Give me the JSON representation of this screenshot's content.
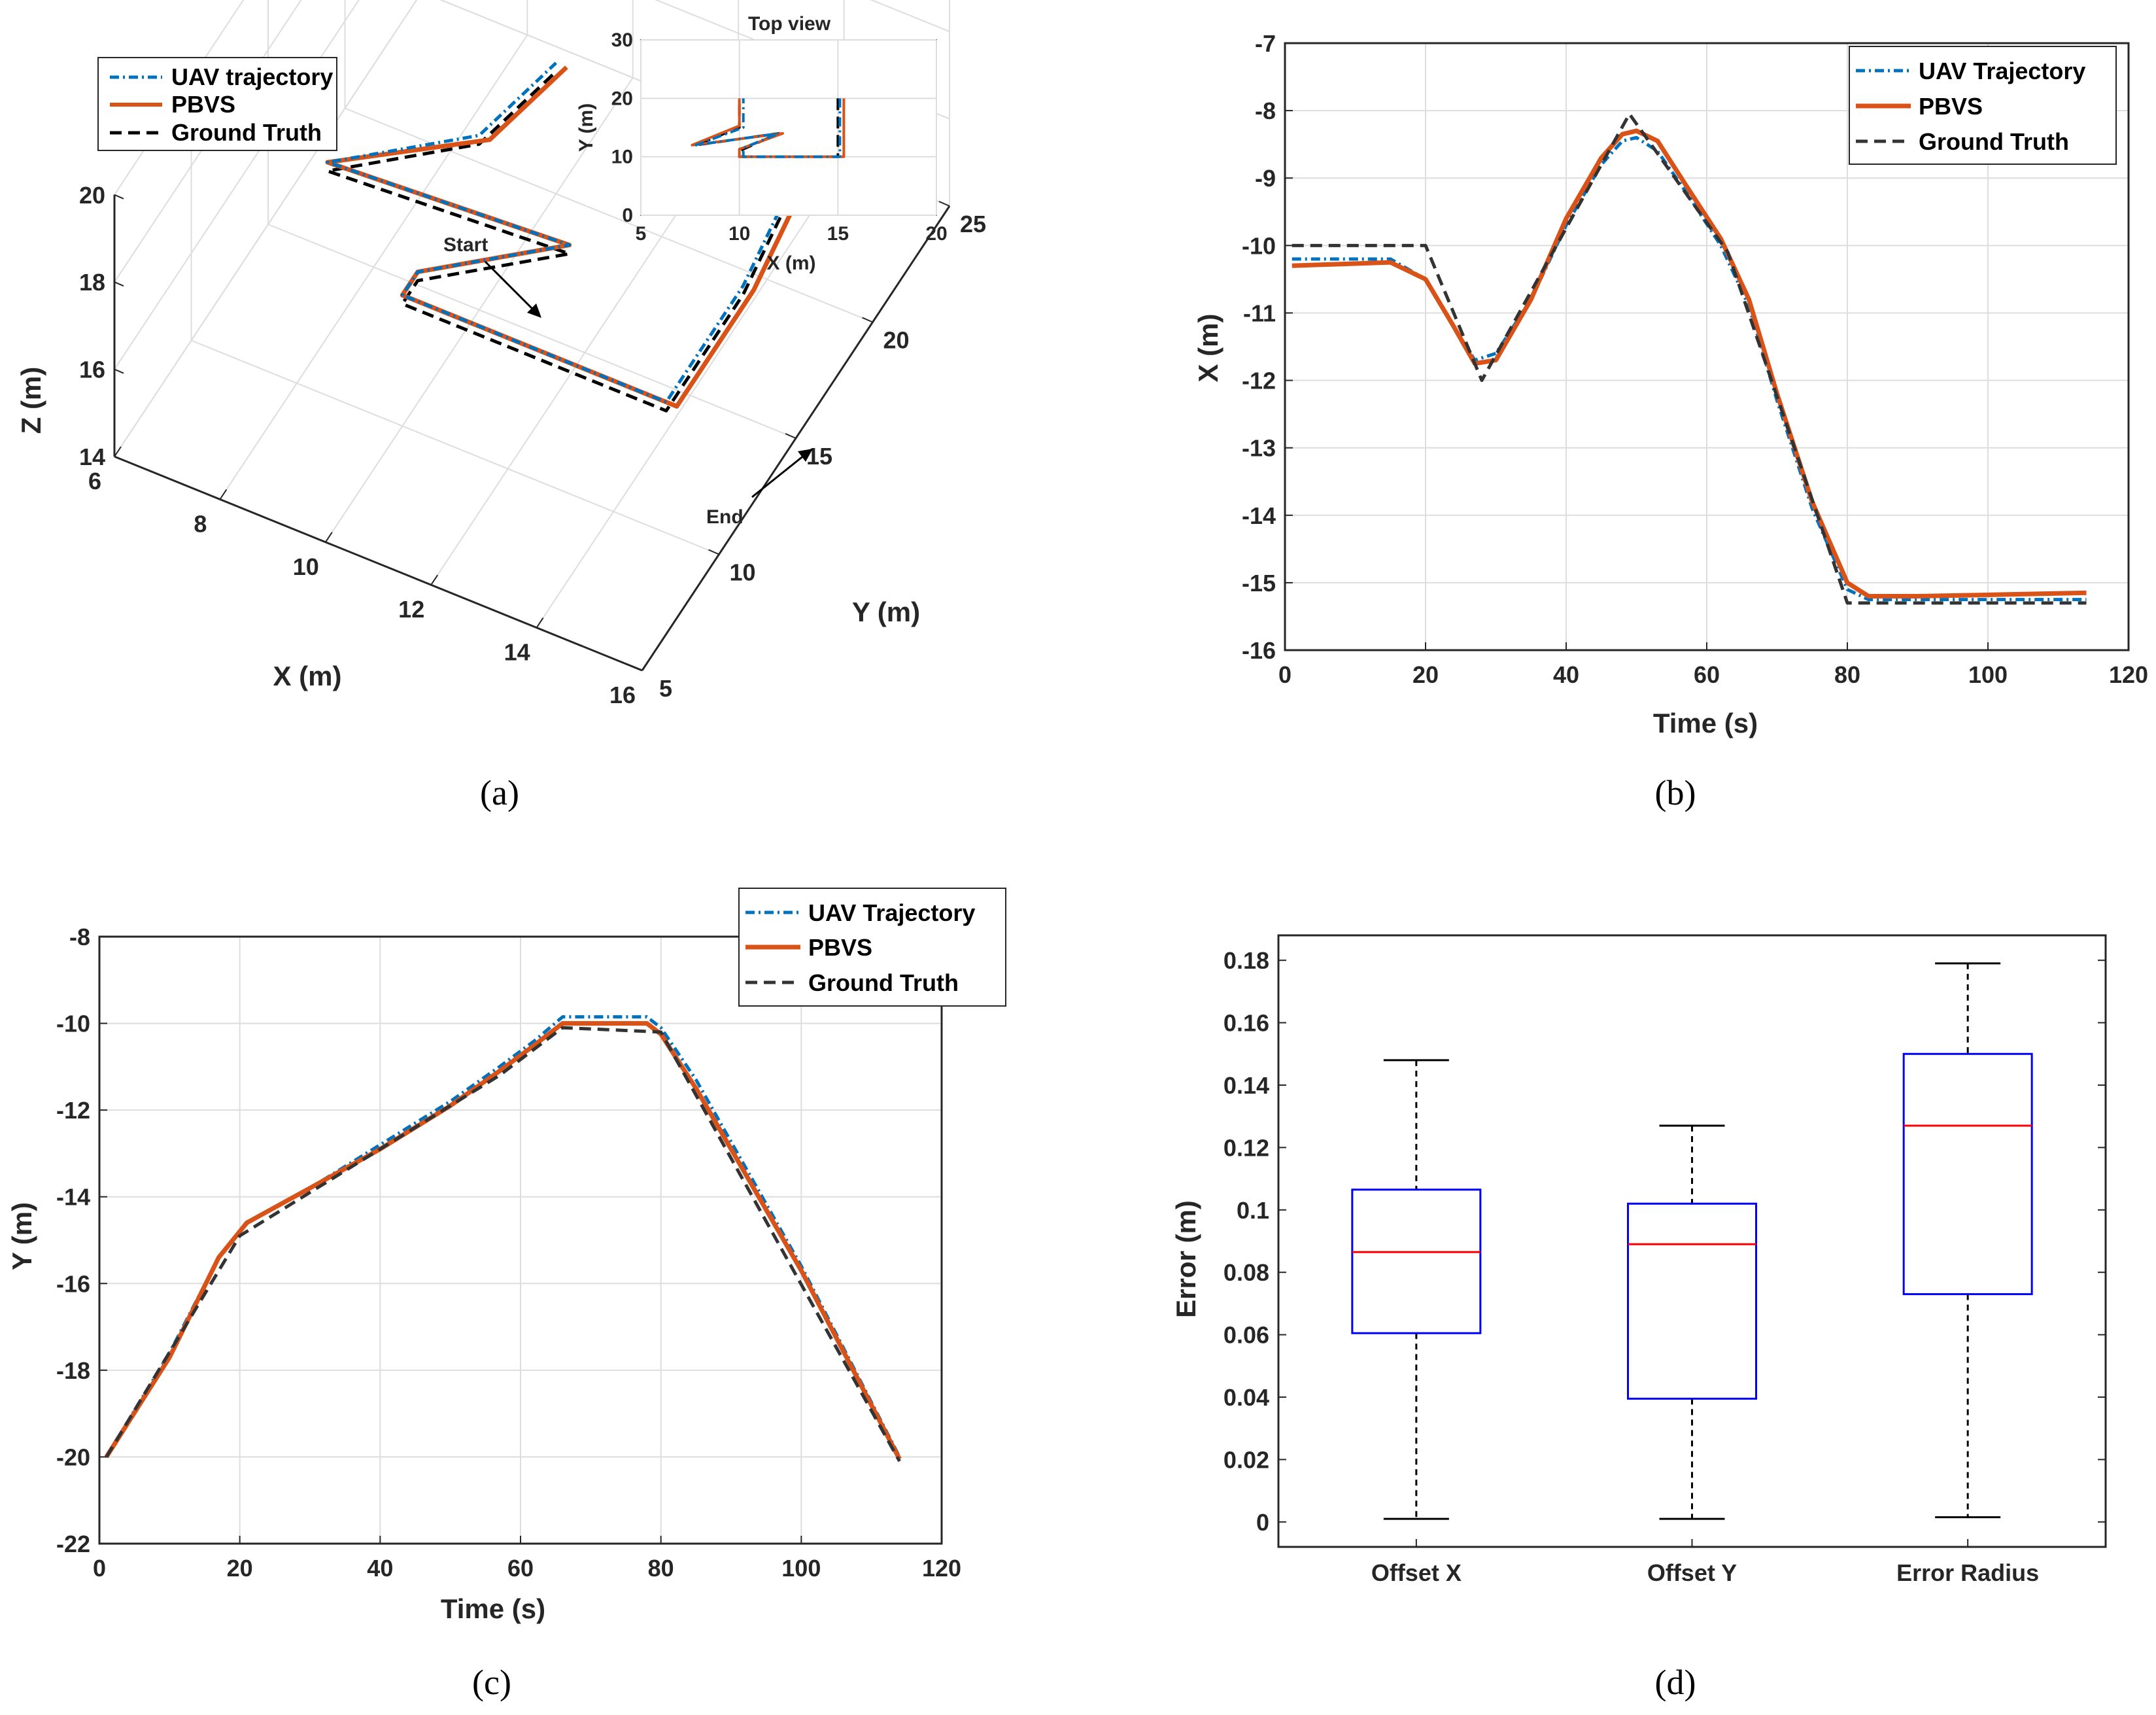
{
  "colors": {
    "uav": "#0072BD",
    "pbvs": "#D95319",
    "truth": "#333333",
    "box": "#0000FF",
    "median": "#FF0000",
    "grid": "#DDDDDD"
  },
  "chart_data": [
    {
      "id": "a",
      "type": "line3d",
      "caption": "(a)",
      "legend": [
        "UAV trajectory",
        "PBVS",
        "Ground Truth"
      ],
      "xlabel": "X (m)",
      "ylabel": "Y (m)",
      "zlabel": "Z (m)",
      "xlim": [
        6,
        16
      ],
      "ylim": [
        5,
        25
      ],
      "zlim": [
        14,
        20
      ],
      "xticks": [
        6,
        8,
        10,
        12,
        14,
        16
      ],
      "yticks": [
        5,
        10,
        15,
        20,
        25
      ],
      "zticks": [
        14,
        16,
        18,
        20
      ],
      "annotations": [
        "Start",
        "End"
      ],
      "series": [
        {
          "name": "UAV trajectory",
          "points": [
            [
              15,
              20,
              18
            ],
            [
              15,
              15,
              17
            ],
            [
              15,
              10,
              17
            ],
            [
              10,
              10,
              17
            ],
            [
              10,
              11,
              17
            ],
            [
              12,
              14,
              17
            ],
            [
              8,
              12,
              18
            ],
            [
              10,
              15,
              18
            ],
            [
              10,
              20,
              17
            ]
          ]
        },
        {
          "name": "PBVS",
          "points": [
            [
              15.2,
              20,
              18
            ],
            [
              15.2,
              15,
              17
            ],
            [
              15.2,
              10,
              17
            ],
            [
              10,
              10,
              17
            ],
            [
              10,
              11,
              17
            ],
            [
              12,
              14,
              17
            ],
            [
              8,
              12,
              18
            ],
            [
              10.2,
              15,
              18
            ],
            [
              10.2,
              20,
              17
            ]
          ]
        },
        {
          "name": "Ground Truth",
          "points": [
            [
              15,
              20,
              17.8
            ],
            [
              15,
              15,
              16.8
            ],
            [
              15,
              10,
              16.8
            ],
            [
              10,
              10,
              16.8
            ],
            [
              10,
              11,
              16.8
            ],
            [
              12,
              14,
              16.8
            ],
            [
              8,
              12,
              17.8
            ],
            [
              10,
              15,
              17.8
            ],
            [
              10,
              20,
              16.8
            ]
          ]
        }
      ],
      "inset": {
        "title": "Top view",
        "xlabel": "X (m)",
        "ylabel": "Y (m)",
        "xlim": [
          5,
          20
        ],
        "ylim": [
          0,
          30
        ],
        "xticks": [
          5,
          10,
          15,
          20
        ],
        "yticks": [
          0,
          10,
          20,
          30
        ],
        "series": [
          {
            "name": "UAV trajectory",
            "x": [
              15.1,
              15.1,
              10.2,
              10.2,
              12,
              7.8,
              10.2,
              10.2
            ],
            "y": [
              20,
              10,
              10,
              11.5,
              14,
              12,
              15,
              20
            ]
          },
          {
            "name": "PBVS",
            "x": [
              15.3,
              15.3,
              10,
              10,
              12.2,
              7.6,
              10,
              10
            ],
            "y": [
              20,
              10,
              10,
              11.3,
              14,
              12,
              15.3,
              20
            ]
          },
          {
            "name": "Ground Truth",
            "x": [
              15,
              15,
              10,
              10,
              12,
              7.8,
              10,
              10
            ],
            "y": [
              20,
              10,
              10,
              11,
              14,
              12,
              15,
              19.8
            ]
          }
        ]
      }
    },
    {
      "id": "b",
      "type": "line",
      "caption": "(b)",
      "legend": [
        "UAV Trajectory",
        "PBVS",
        "Ground Truth"
      ],
      "xlabel": "Time (s)",
      "ylabel": "X (m)",
      "xlim": [
        0,
        120
      ],
      "ylim": [
        -16,
        -7
      ],
      "xticks": [
        0,
        20,
        40,
        60,
        80,
        100,
        120
      ],
      "yticks": [
        -16,
        -15,
        -14,
        -13,
        -12,
        -11,
        -10,
        -9,
        -8,
        -7
      ],
      "series": [
        {
          "name": "UAV Trajectory",
          "x": [
            1,
            15,
            20,
            24,
            27,
            30,
            35,
            40,
            45,
            48,
            50,
            53,
            57,
            62,
            66,
            70,
            75,
            80,
            83,
            90,
            100,
            114
          ],
          "y": [
            -10.2,
            -10.2,
            -10.5,
            -11.2,
            -11.7,
            -11.6,
            -10.8,
            -9.7,
            -8.8,
            -8.45,
            -8.4,
            -8.6,
            -9.2,
            -10,
            -10.9,
            -12.3,
            -13.9,
            -15.1,
            -15.25,
            -15.25,
            -15.25,
            -15.25
          ]
        },
        {
          "name": "PBVS",
          "x": [
            1,
            15,
            20,
            24,
            27,
            30,
            35,
            40,
            45,
            48,
            50,
            53,
            57,
            62,
            66,
            70,
            75,
            80,
            83,
            90,
            100,
            114
          ],
          "y": [
            -10.3,
            -10.25,
            -10.5,
            -11.2,
            -11.75,
            -11.7,
            -10.8,
            -9.6,
            -8.7,
            -8.35,
            -8.3,
            -8.45,
            -9.1,
            -9.9,
            -10.8,
            -12.2,
            -13.8,
            -15.0,
            -15.2,
            -15.2,
            -15.18,
            -15.15
          ]
        },
        {
          "name": "Ground Truth",
          "x": [
            1,
            20,
            28,
            49,
            63,
            80,
            114
          ],
          "y": [
            -10,
            -10,
            -12,
            -8.05,
            -10.1,
            -15.3,
            -15.3
          ]
        }
      ]
    },
    {
      "id": "c",
      "type": "line",
      "caption": "(c)",
      "legend": [
        "UAV Trajectory",
        "PBVS",
        "Ground Truth"
      ],
      "xlabel": "Time (s)",
      "ylabel": "Y (m)",
      "xlim": [
        0,
        120
      ],
      "ylim": [
        -22,
        -8
      ],
      "xticks": [
        0,
        20,
        40,
        60,
        80,
        100,
        120
      ],
      "yticks": [
        -22,
        -20,
        -18,
        -16,
        -14,
        -12,
        -10,
        -8
      ],
      "series": [
        {
          "name": "UAV Trajectory",
          "x": [
            1,
            10,
            17,
            21,
            30,
            40,
            50,
            57,
            62,
            66,
            70,
            78,
            80,
            85,
            100,
            114
          ],
          "y": [
            -20,
            -17.6,
            -15.4,
            -14.6,
            -13.8,
            -12.8,
            -11.8,
            -11.0,
            -10.4,
            -9.85,
            -9.85,
            -9.85,
            -10.1,
            -11.3,
            -15.6,
            -20
          ]
        },
        {
          "name": "PBVS",
          "x": [
            1,
            10,
            17,
            21,
            30,
            40,
            50,
            57,
            62,
            66,
            70,
            78,
            80,
            85,
            100,
            114
          ],
          "y": [
            -20,
            -17.7,
            -15.4,
            -14.6,
            -13.8,
            -12.9,
            -11.9,
            -11.1,
            -10.5,
            -10.0,
            -10.0,
            -10.0,
            -10.25,
            -11.5,
            -15.7,
            -20.05
          ]
        },
        {
          "name": "Ground Truth",
          "x": [
            1,
            20,
            57,
            66,
            80,
            114
          ],
          "y": [
            -20,
            -14.9,
            -11.2,
            -10.1,
            -10.2,
            -20.1
          ]
        }
      ]
    },
    {
      "id": "d",
      "type": "boxplot",
      "caption": "(d)",
      "xlabel": "",
      "ylabel": "Error (m)",
      "ylim": [
        -0.008,
        0.188
      ],
      "yticks": [
        0,
        0.02,
        0.04,
        0.06,
        0.08,
        0.1,
        0.12,
        0.14,
        0.16,
        0.18
      ],
      "ytick_labels": [
        "0",
        "0.02",
        "0.04",
        "0.06",
        "0.08",
        "0.1",
        "0.12",
        "0.14",
        "0.16",
        "0.18"
      ],
      "categories": [
        "Offset X",
        "Offset Y",
        "Error Radius"
      ],
      "boxes": [
        {
          "min": 0.001,
          "q1": 0.0605,
          "median": 0.0865,
          "q3": 0.1065,
          "max": 0.148
        },
        {
          "min": 0.001,
          "q1": 0.0395,
          "median": 0.089,
          "q3": 0.102,
          "max": 0.127
        },
        {
          "min": 0.0015,
          "q1": 0.073,
          "median": 0.127,
          "q3": 0.15,
          "max": 0.179
        }
      ]
    }
  ]
}
